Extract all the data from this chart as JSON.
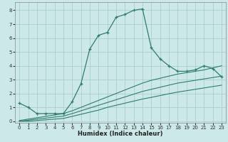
{
  "xlabel": "Humidex (Indice chaleur)",
  "bg_color": "#cce8e8",
  "grid_color": "#aacece",
  "line_color": "#2e7d6e",
  "xlim": [
    -0.5,
    23.5
  ],
  "ylim": [
    -0.1,
    8.6
  ],
  "xticks": [
    0,
    1,
    2,
    3,
    4,
    5,
    6,
    7,
    8,
    9,
    10,
    11,
    12,
    13,
    14,
    15,
    16,
    17,
    18,
    19,
    20,
    21,
    22,
    23
  ],
  "yticks": [
    0,
    1,
    2,
    3,
    4,
    5,
    6,
    7,
    8
  ],
  "main_line_x": [
    0,
    1,
    2,
    3,
    4,
    5,
    6,
    7,
    8,
    9,
    10,
    11,
    12,
    13,
    14,
    15,
    16,
    17,
    18,
    19,
    20,
    21,
    22,
    23
  ],
  "main_line_y": [
    1.3,
    1.0,
    0.55,
    0.55,
    0.55,
    0.55,
    1.4,
    2.7,
    5.2,
    6.2,
    6.4,
    7.5,
    7.7,
    8.0,
    8.1,
    5.3,
    4.5,
    4.0,
    3.6,
    3.6,
    3.7,
    4.0,
    3.8,
    3.2
  ],
  "line2_x": [
    0,
    1,
    2,
    3,
    4,
    5,
    6,
    7,
    8,
    9,
    10,
    11,
    12,
    13,
    14,
    15,
    16,
    17,
    18,
    19,
    20,
    21,
    22,
    23
  ],
  "line2_y": [
    0.05,
    0.15,
    0.25,
    0.35,
    0.45,
    0.55,
    0.75,
    1.0,
    1.25,
    1.5,
    1.75,
    2.0,
    2.25,
    2.5,
    2.75,
    2.95,
    3.1,
    3.25,
    3.4,
    3.5,
    3.6,
    3.7,
    3.85,
    4.0
  ],
  "line3_x": [
    0,
    1,
    2,
    3,
    4,
    5,
    6,
    7,
    8,
    9,
    10,
    11,
    12,
    13,
    14,
    15,
    16,
    17,
    18,
    19,
    20,
    21,
    22,
    23
  ],
  "line3_y": [
    0.0,
    0.07,
    0.15,
    0.22,
    0.3,
    0.37,
    0.55,
    0.75,
    0.95,
    1.15,
    1.35,
    1.55,
    1.75,
    1.95,
    2.15,
    2.3,
    2.45,
    2.6,
    2.75,
    2.85,
    2.95,
    3.05,
    3.15,
    3.25
  ],
  "line4_x": [
    0,
    1,
    2,
    3,
    4,
    5,
    6,
    7,
    8,
    9,
    10,
    11,
    12,
    13,
    14,
    15,
    16,
    17,
    18,
    19,
    20,
    21,
    22,
    23
  ],
  "line4_y": [
    0.0,
    0.0,
    0.05,
    0.1,
    0.15,
    0.2,
    0.35,
    0.5,
    0.65,
    0.8,
    1.0,
    1.15,
    1.3,
    1.45,
    1.6,
    1.72,
    1.85,
    1.98,
    2.1,
    2.2,
    2.3,
    2.4,
    2.5,
    2.6
  ]
}
